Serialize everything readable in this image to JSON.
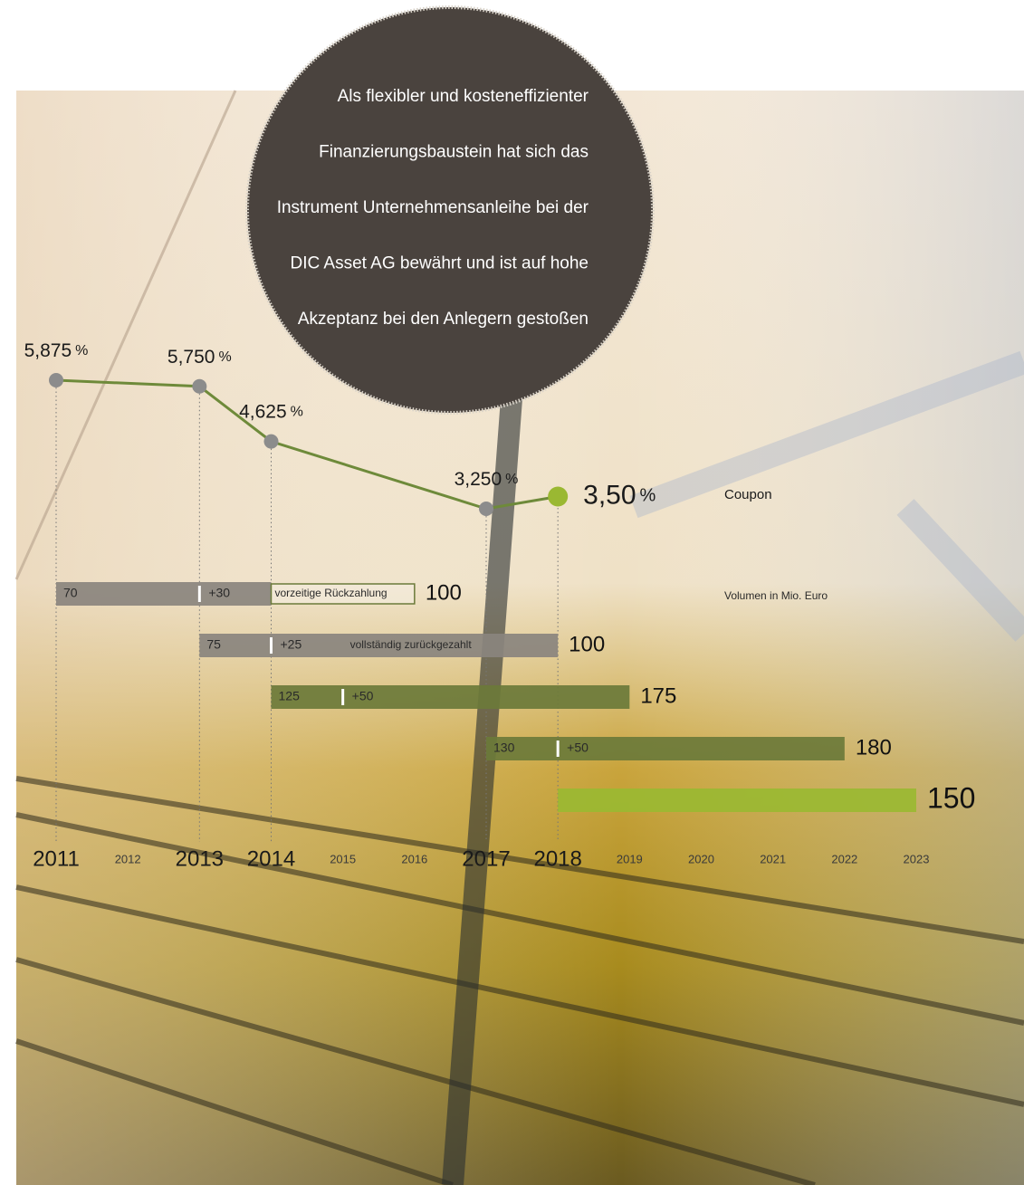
{
  "chart_data": [
    {
      "type": "line",
      "label": "Coupon",
      "unit": "%",
      "color": "#6e8a3a",
      "x": [
        2011,
        2013,
        2014,
        2017,
        2018
      ],
      "values": [
        5.875,
        5.75,
        4.625,
        3.25,
        3.5
      ],
      "value_labels": [
        "5,875",
        "5,750",
        "4,625",
        "3,250",
        "3,50"
      ],
      "point_colors": [
        "#8c8c8c",
        "#8c8c8c",
        "#8c8c8c",
        "#8c8c8c",
        "#9ab832"
      ]
    },
    {
      "type": "timeline",
      "label": "Volumen in Mio. Euro",
      "xticks": [
        2011,
        2012,
        2013,
        2014,
        2015,
        2016,
        2017,
        2018,
        2019,
        2020,
        2021,
        2022,
        2023
      ],
      "bars": [
        {
          "start": 2011,
          "end": 2014,
          "maturity": 2016,
          "base": 70,
          "increase": 30,
          "increase_label": "+30",
          "increase_year": 2013,
          "total": 100,
          "note": "vorzeitige Rückzahlung",
          "color": "#8a847e"
        },
        {
          "start": 2013,
          "end": 2018,
          "base": 75,
          "increase": 25,
          "increase_label": "+25",
          "increase_year": 2014,
          "total": 100,
          "note": "vollständig zurückgezahlt",
          "color": "#8a847e"
        },
        {
          "start": 2014,
          "end": 2019,
          "base": 125,
          "increase": 50,
          "increase_label": "+50",
          "increase_year": 2015,
          "total": 175,
          "color": "#6b7a3a"
        },
        {
          "start": 2017,
          "end": 2022,
          "base": 130,
          "increase": 50,
          "increase_label": "+50",
          "increase_year": 2018,
          "total": 180,
          "color": "#6b7a3a"
        },
        {
          "start": 2018,
          "end": 2023,
          "total": 150,
          "color": "#9ab832"
        }
      ]
    }
  ],
  "callout": [
    "Als flexibler und kosteneffizienter",
    "Finanzierungsbaustein hat sich das",
    "Instrument Unternehmensanleihe bei der",
    "DIC Asset AG bewährt und ist auf hohe",
    "Akzeptanz bei den Anlegern gestoßen"
  ]
}
